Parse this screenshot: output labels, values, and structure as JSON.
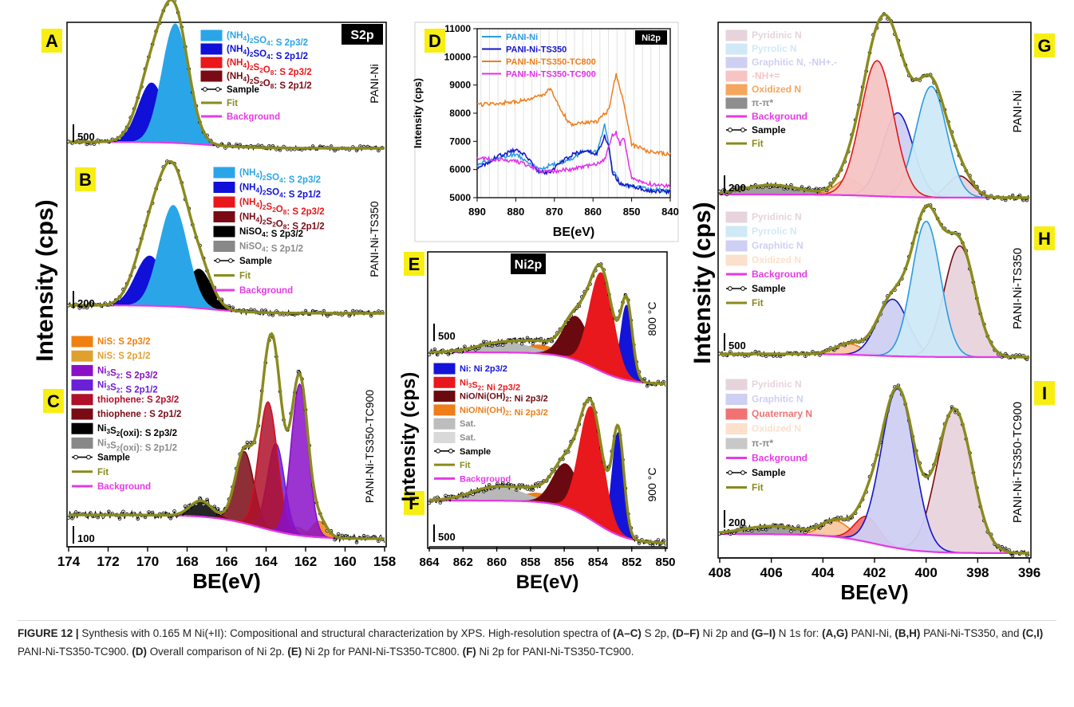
{
  "caption": {
    "label": "FIGURE 12 |",
    "t1": " Synthesis with 0.165 M Ni(+II): Compositional and structural characterization by XPS. High-resolution spectra of ",
    "b1": "(A–C)",
    "t2": " S 2p, ",
    "b2": "(D–F)",
    "t3": " Ni 2p and ",
    "b3": "(G–I)",
    "t4": " N 1s for: ",
    "b4": "(A,G)",
    "t5": " PANI-Ni, ",
    "b5": "(B,H)",
    "t6": " PANi-Ni-TS350, and ",
    "b6": "(C,I)",
    "t7": " PANI-Ni-TS350-TC900. ",
    "b7": "(D)",
    "t8": " Overall comparison of Ni 2p. ",
    "b8": "(E)",
    "t9": " Ni 2p for PANI-Ni-TS350-TC800. ",
    "b9": "(F)",
    "t10": " Ni 2p for PANI-Ni-TS350-TC900."
  },
  "chart_data": [
    {
      "id": "A",
      "type": "area",
      "core_level": "S2p",
      "sample": "PANI-Ni",
      "scale_bar": "500",
      "xlim": [
        174,
        158
      ],
      "shared_ylabel": "Intensity (cps)",
      "xlabel": "BE(eV)",
      "legend": [
        {
          "label": "(NH4)2SO4: S 2p3/2",
          "color": "#2aa6e8"
        },
        {
          "label": "(NH4)2SO4: S 2p1/2",
          "color": "#1010d8"
        },
        {
          "label": "(NH4)2S2O8: S 2p3/2",
          "color": "#e8181c"
        },
        {
          "label": "(NH4)2S2O8: S 2p1/2",
          "color": "#7a0a14"
        },
        {
          "label": "Sample"
        },
        {
          "label": "Fit"
        },
        {
          "label": "Background"
        }
      ],
      "peaks": [
        {
          "name": "(NH4)2SO4: S 2p3/2",
          "center": 168.6,
          "height": 1.0,
          "fwhm": 1.6
        },
        {
          "name": "(NH4)2SO4: S 2p1/2",
          "center": 169.8,
          "height": 0.5,
          "fwhm": 1.6
        },
        {
          "name": "(NH4)2S2O8: S 2p3/2",
          "center": 169.2,
          "height": 0.08,
          "fwhm": 1.6
        },
        {
          "name": "(NH4)2S2O8: S 2p1/2",
          "center": 170.4,
          "height": 0.04,
          "fwhm": 1.6
        }
      ]
    },
    {
      "id": "B",
      "type": "area",
      "core_level": "S2p",
      "sample": "PANI-Ni-TS350",
      "scale_bar": "200",
      "legend": [
        {
          "label": "(NH4)2SO4: S 2p3/2",
          "color": "#2aa6e8"
        },
        {
          "label": "(NH4)2SO4: S 2p1/2",
          "color": "#1010d8"
        },
        {
          "label": "(NH4)2S2O8: S 2p3/2",
          "color": "#e8181c"
        },
        {
          "label": "(NH4)2S2O8: S 2p1/2",
          "color": "#7a0a14"
        },
        {
          "label": "NiSO4: S 2p3/2",
          "color": "#000000"
        },
        {
          "label": "NiSO4: S 2p1/2",
          "color": "#888888"
        },
        {
          "label": "Sample"
        },
        {
          "label": "Fit"
        },
        {
          "label": "Background"
        }
      ],
      "peaks": [
        {
          "name": "(NH4)2SO4: S 2p3/2",
          "center": 168.7,
          "height": 0.85,
          "fwhm": 1.7
        },
        {
          "name": "(NH4)2SO4: S 2p1/2",
          "center": 169.9,
          "height": 0.42,
          "fwhm": 1.7
        },
        {
          "name": "(NH4)2S2O8: S 2p3/2",
          "center": 169.6,
          "height": 0.12,
          "fwhm": 1.5
        },
        {
          "name": "(NH4)2S2O8: S 2p1/2",
          "center": 170.5,
          "height": 0.06,
          "fwhm": 1.5
        },
        {
          "name": "NiSO4: S 2p3/2",
          "center": 167.4,
          "height": 0.33,
          "fwhm": 1.5
        },
        {
          "name": "NiSO4: S 2p1/2",
          "center": 168.6,
          "height": 0.16,
          "fwhm": 1.5
        }
      ]
    },
    {
      "id": "C",
      "type": "area",
      "core_level": "S2p",
      "sample": "PANI-Ni-TS350-TC900",
      "scale_bar": "100",
      "xticks": [
        174,
        172,
        170,
        168,
        166,
        164,
        162,
        160,
        158
      ],
      "legend": [
        {
          "label": "NiS: S 2p3/2",
          "color": "#f08010"
        },
        {
          "label": "NiS: S 2p1/2",
          "color": "#e0a030"
        },
        {
          "label": "Ni3S2: S 2p3/2",
          "color": "#8a10c8"
        },
        {
          "label": "Ni3S2: S 2p1/2",
          "color": "#6a20d8"
        },
        {
          "label": "thiophene: S 2p3/2",
          "color": "#b0102a"
        },
        {
          "label": "thiophene : S 2p1/2",
          "color": "#7a0a14"
        },
        {
          "label": "Ni3S2(oxi): S 2p3/2",
          "color": "#000000"
        },
        {
          "label": "Ni3S2(oxi): S 2p1/2",
          "color": "#888888"
        },
        {
          "label": "Sample"
        },
        {
          "label": "Fit"
        },
        {
          "label": "Background"
        }
      ],
      "peaks": [
        {
          "name": "Ni3S2: S 2p3/2",
          "center": 162.3,
          "height": 0.95,
          "fwhm": 1.0
        },
        {
          "name": "Ni3S2: S 2p1/2",
          "center": 163.5,
          "height": 0.55,
          "fwhm": 1.0
        },
        {
          "name": "thiophene: S 2p3/2",
          "center": 163.9,
          "height": 0.8,
          "fwhm": 1.1
        },
        {
          "name": "thiophene : S 2p1/2",
          "center": 165.1,
          "height": 0.45,
          "fwhm": 1.1
        },
        {
          "name": "Ni3S2(oxi): S 2p3/2",
          "center": 167.3,
          "height": 0.1,
          "fwhm": 1.3
        },
        {
          "name": "NiS: S 2p3/2",
          "center": 161.3,
          "height": 0.1,
          "fwhm": 0.9
        },
        {
          "name": "NiS: S 2p1/2",
          "center": 162.4,
          "height": 0.05,
          "fwhm": 0.9
        }
      ]
    },
    {
      "id": "D",
      "type": "line",
      "core_level": "Ni2p",
      "xlim": [
        890,
        840
      ],
      "ylim": [
        5000,
        11000
      ],
      "xticks": [
        890,
        880,
        870,
        860,
        850,
        840
      ],
      "yticks": [
        5000,
        6000,
        7000,
        8000,
        9000,
        10000,
        11000
      ],
      "xlabel": "BE(eV)",
      "ylabel": "Intensity (cps)",
      "series": [
        {
          "name": "PANI-Ni",
          "color": "#2a9be0",
          "x": [
            890,
            885,
            880,
            877,
            874,
            871,
            868,
            865,
            862,
            859,
            857,
            856,
            855,
            853,
            850,
            845,
            840
          ],
          "y": [
            6150,
            6400,
            6550,
            6300,
            6000,
            6150,
            6250,
            6400,
            6700,
            6600,
            7600,
            6900,
            6000,
            5500,
            5400,
            5300,
            5250
          ]
        },
        {
          "name": "PANI-Ni-TS350",
          "color": "#1414c8",
          "x": [
            890,
            885,
            880,
            877,
            874,
            871,
            868,
            865,
            862,
            859,
            857,
            856,
            855,
            853,
            850,
            845,
            840
          ],
          "y": [
            6000,
            6450,
            6700,
            6450,
            5900,
            5900,
            6300,
            6550,
            6650,
            6550,
            7200,
            6900,
            5900,
            5500,
            5400,
            5250,
            5200
          ]
        },
        {
          "name": "PANI-Ni-TS350-TC800",
          "color": "#ee7d1a",
          "x": [
            890,
            885,
            880,
            876,
            873,
            871,
            869,
            866,
            862,
            859,
            856,
            854,
            853,
            852,
            850,
            846,
            840
          ],
          "y": [
            8300,
            8350,
            8400,
            8500,
            8650,
            8850,
            8300,
            7600,
            7650,
            7700,
            8100,
            9400,
            8900,
            8300,
            6900,
            6650,
            6550
          ]
        },
        {
          "name": "PANI-Ni-TS350-TC900",
          "color": "#e030e8",
          "x": [
            890,
            885,
            880,
            876,
            873,
            870,
            866,
            862,
            859,
            857,
            855,
            854,
            853,
            852,
            850,
            846,
            840
          ],
          "y": [
            6400,
            6350,
            6300,
            6100,
            5900,
            5950,
            6000,
            6100,
            6200,
            6350,
            7200,
            7300,
            6900,
            7100,
            5700,
            5500,
            5400
          ]
        }
      ]
    },
    {
      "id": "E",
      "type": "area",
      "core_level": "Ni2p",
      "sample": "800 °C",
      "scale_bar": "500",
      "peaks": [
        {
          "name": "Ni: Ni 2p3/2",
          "center": 852.3,
          "height": 0.72,
          "fwhm": 0.8
        },
        {
          "name": "Ni3S2: Ni 2p3/2",
          "center": 853.8,
          "height": 0.95,
          "fwhm": 1.6
        },
        {
          "name": "NiO/Ni(OH)2: Ni 2p3/2",
          "center": 855.3,
          "height": 0.42,
          "fwhm": 1.8
        },
        {
          "name": "NiO/Ni(OH)2: Ni 2p3/2 (orange)",
          "center": 857.4,
          "height": 0.08,
          "fwhm": 2.2
        },
        {
          "name": "Sat.",
          "center": 859.6,
          "height": 0.1,
          "fwhm": 3.5
        }
      ]
    },
    {
      "id": "F",
      "type": "area",
      "core_level": "Ni2p",
      "sample": "900 °C",
      "scale_bar": "500",
      "xlim": [
        864,
        850
      ],
      "xticks": [
        864,
        862,
        860,
        858,
        856,
        854,
        852,
        850
      ],
      "xlabel": "BE(eV)",
      "legend": [
        {
          "label": "Ni: Ni 2p3/2",
          "color": "#1414d8"
        },
        {
          "label": "Ni3S2: Ni 2p3/2",
          "color": "#e8181c"
        },
        {
          "label": "NiO/Ni(OH)2: Ni 2p3/2",
          "color": "#6a0a10"
        },
        {
          "label": "NiO/Ni(OH)2: Ni 2p3/2",
          "color": "#ee7d1a"
        },
        {
          "label": "Sat.",
          "color": "#bdbdbd"
        },
        {
          "label": "Sat.",
          "color": "#d9d9d9"
        },
        {
          "label": "Sample"
        },
        {
          "label": "Fit"
        },
        {
          "label": "Background"
        }
      ],
      "peaks": [
        {
          "name": "Ni: Ni 2p3/2",
          "center": 852.8,
          "height": 0.95,
          "fwhm": 0.8
        },
        {
          "name": "Ni3S2: Ni 2p3/2",
          "center": 854.4,
          "height": 1.05,
          "fwhm": 1.6
        },
        {
          "name": "NiO/Ni(OH)2: Ni 2p3/2",
          "center": 855.9,
          "height": 0.4,
          "fwhm": 1.8
        },
        {
          "name": "NiO/Ni(OH)2: Ni 2p3/2 (orange)",
          "center": 857.6,
          "height": 0.08,
          "fwhm": 2.2
        },
        {
          "name": "Sat.",
          "center": 860.0,
          "height": 0.13,
          "fwhm": 3.5
        }
      ]
    },
    {
      "id": "G",
      "type": "area",
      "core_level": "N1s",
      "sample": "PANI-Ni",
      "scale_bar": "200",
      "xlim": [
        408,
        396
      ],
      "shared_ylabel": "Intensity (cps)",
      "legend": [
        {
          "label": "Pyridinic N",
          "color": "#e7d3dc"
        },
        {
          "label": "Pyrrolic N",
          "color": "#cfe9f7"
        },
        {
          "label": "Graphitic N, -NH+.-",
          "color": "#cfcff3"
        },
        {
          "label": "-NH+=",
          "color": "#f6c4c4"
        },
        {
          "label": "Oxidized N",
          "color": "#f5a65e"
        },
        {
          "label": "π-π*",
          "color": "#8e8e8e"
        },
        {
          "label": "Background"
        },
        {
          "label": "Sample"
        },
        {
          "label": "Fit"
        }
      ],
      "peaks": [
        {
          "name": "-NH+=",
          "center": 401.9,
          "height": 1.0,
          "fwhm": 1.5
        },
        {
          "name": "Pyrrolic N",
          "center": 399.8,
          "height": 0.82,
          "fwhm": 1.4
        },
        {
          "name": "Graphitic N, -NH+.-",
          "center": 401.1,
          "height": 0.62,
          "fwhm": 1.4
        },
        {
          "name": "Pyridinic N",
          "center": 398.7,
          "height": 0.16,
          "fwhm": 1.1
        },
        {
          "name": "Oxidized N",
          "center": 403.0,
          "height": 0.12,
          "fwhm": 1.2
        },
        {
          "name": "π-π*",
          "center": 406.0,
          "height": 0.07,
          "fwhm": 2.6
        }
      ]
    },
    {
      "id": "H",
      "type": "area",
      "core_level": "N1s",
      "sample": "PANI-Ni-TS350",
      "scale_bar": "500",
      "legend": [
        {
          "label": "Pyridinic N",
          "color": "#e7d3dc"
        },
        {
          "label": "Pyrrolic N",
          "color": "#cfe9f7"
        },
        {
          "label": "Graphitic N",
          "color": "#cfcff3"
        },
        {
          "label": "Oxidized N",
          "color": "#fbe0cc"
        },
        {
          "label": "Background"
        },
        {
          "label": "Sample"
        },
        {
          "label": "Fit"
        }
      ],
      "peaks": [
        {
          "name": "Pyrrolic N",
          "center": 400.0,
          "height": 1.0,
          "fwhm": 1.3
        },
        {
          "name": "Pyridinic N",
          "center": 398.7,
          "height": 0.82,
          "fwhm": 1.4
        },
        {
          "name": "Graphitic N",
          "center": 401.3,
          "height": 0.42,
          "fwhm": 1.4
        },
        {
          "name": "Oxidized N",
          "center": 403.0,
          "height": 0.08,
          "fwhm": 1.3
        }
      ]
    },
    {
      "id": "I",
      "type": "area",
      "core_level": "N1s",
      "sample": "PANI-Ni-TS350-TC900",
      "scale_bar": "200",
      "xlim": [
        408,
        396
      ],
      "xticks": [
        408,
        406,
        404,
        402,
        400,
        398,
        396
      ],
      "xlabel": "BE(eV)",
      "legend": [
        {
          "label": "Pyridinic N",
          "color": "#e7d3dc"
        },
        {
          "label": "Graphitic N",
          "color": "#cfcff3"
        },
        {
          "label": "Quaternary N",
          "color": "#f07272"
        },
        {
          "label": "Oxidized N",
          "color": "#fbe0cc"
        },
        {
          "label": "π-π*",
          "color": "#c8c8c8"
        },
        {
          "label": "Background"
        },
        {
          "label": "Sample"
        },
        {
          "label": "Fit"
        }
      ],
      "peaks": [
        {
          "name": "Graphitic N",
          "center": 401.1,
          "height": 1.0,
          "fwhm": 1.5
        },
        {
          "name": "Pyridinic N",
          "center": 398.9,
          "height": 0.9,
          "fwhm": 1.6
        },
        {
          "name": "Quaternary N",
          "center": 402.3,
          "height": 0.16,
          "fwhm": 1.1
        },
        {
          "name": "Oxidized N",
          "center": 403.5,
          "height": 0.1,
          "fwhm": 1.3
        },
        {
          "name": "π-π*",
          "center": 406.0,
          "height": 0.05,
          "fwhm": 2.6
        }
      ]
    }
  ]
}
